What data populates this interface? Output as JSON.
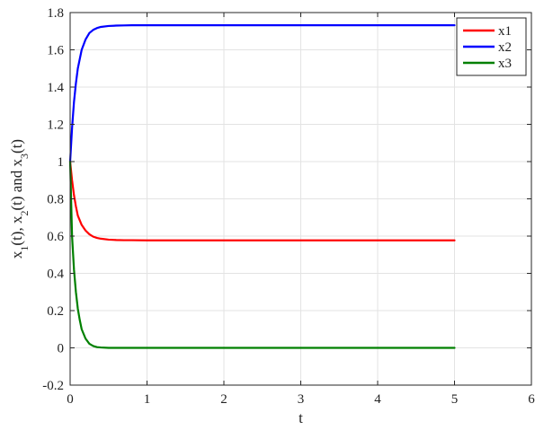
{
  "chart_data": {
    "type": "line",
    "title": "",
    "xlabel": "t",
    "ylabel_parts": [
      "x",
      "1",
      "(t), x",
      "2",
      "(t) and x",
      "3",
      "(t)"
    ],
    "xlim": [
      0,
      6
    ],
    "ylim": [
      -0.2,
      1.8
    ],
    "xticks": [
      0,
      1,
      2,
      3,
      4,
      5,
      6
    ],
    "xtick_labels": [
      "0",
      "1",
      "2",
      "3",
      "4",
      "5",
      "6"
    ],
    "yticks": [
      -0.2,
      0,
      0.2,
      0.4,
      0.6,
      0.8,
      1,
      1.2,
      1.4,
      1.6,
      1.8
    ],
    "ytick_labels": [
      "-0.2",
      "0",
      "0.2",
      "0.4",
      "0.6",
      "0.8",
      "1",
      "1.2",
      "1.4",
      "1.6",
      "1.8"
    ],
    "grid": true,
    "legend_position": "top-right",
    "series": [
      {
        "name": "x1",
        "color": "#ff0000",
        "x": [
          0,
          0.025,
          0.05,
          0.075,
          0.1,
          0.15,
          0.2,
          0.25,
          0.3,
          0.35,
          0.4,
          0.5,
          0.6,
          0.7,
          0.8,
          1.0,
          1.25,
          1.5,
          2,
          3,
          4,
          5
        ],
        "y": [
          1.0,
          0.9,
          0.82,
          0.76,
          0.71,
          0.66,
          0.63,
          0.61,
          0.597,
          0.59,
          0.586,
          0.581,
          0.579,
          0.578,
          0.578,
          0.577,
          0.577,
          0.577,
          0.577,
          0.577,
          0.577,
          0.577
        ]
      },
      {
        "name": "x2",
        "color": "#0000ff",
        "x": [
          0,
          0.025,
          0.05,
          0.075,
          0.1,
          0.15,
          0.2,
          0.25,
          0.3,
          0.35,
          0.4,
          0.5,
          0.6,
          0.7,
          0.8,
          1.0,
          1.25,
          1.5,
          2,
          3,
          4,
          5
        ],
        "y": [
          1.0,
          1.18,
          1.32,
          1.42,
          1.5,
          1.6,
          1.655,
          1.69,
          1.707,
          1.717,
          1.723,
          1.728,
          1.73,
          1.731,
          1.732,
          1.732,
          1.732,
          1.732,
          1.732,
          1.732,
          1.732,
          1.732
        ]
      },
      {
        "name": "x3",
        "color": "#008000",
        "x": [
          0,
          0.025,
          0.05,
          0.075,
          0.1,
          0.125,
          0.15,
          0.2,
          0.25,
          0.3,
          0.35,
          0.4,
          0.5,
          0.6,
          0.8,
          1.0,
          1.5,
          2,
          3,
          4,
          5
        ],
        "y": [
          1.0,
          0.6,
          0.42,
          0.3,
          0.21,
          0.15,
          0.1,
          0.05,
          0.022,
          0.01,
          0.004,
          0.002,
          0.0,
          0.0,
          0.0,
          0.0,
          0.0,
          0.0,
          0.0,
          0.0,
          0.0
        ]
      }
    ]
  }
}
